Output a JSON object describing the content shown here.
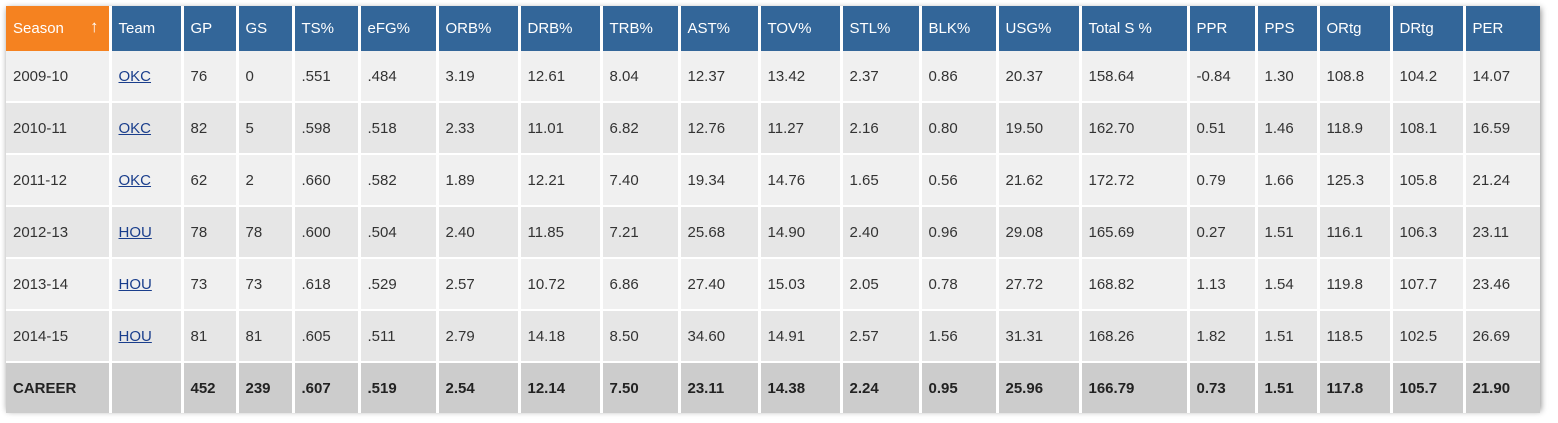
{
  "table": {
    "columns": [
      "Season",
      "Team",
      "GP",
      "GS",
      "TS%",
      "eFG%",
      "ORB%",
      "DRB%",
      "TRB%",
      "AST%",
      "TOV%",
      "STL%",
      "BLK%",
      "USG%",
      "Total S %",
      "PPR",
      "PPS",
      "ORtg",
      "DRtg",
      "PER"
    ],
    "sort_indicator": "↑",
    "rows": [
      [
        "2009-10",
        "OKC",
        "76",
        "0",
        ".551",
        ".484",
        "3.19",
        "12.61",
        "8.04",
        "12.37",
        "13.42",
        "2.37",
        "0.86",
        "20.37",
        "158.64",
        "-0.84",
        "1.30",
        "108.8",
        "104.2",
        "14.07"
      ],
      [
        "2010-11",
        "OKC",
        "82",
        "5",
        ".598",
        ".518",
        "2.33",
        "11.01",
        "6.82",
        "12.76",
        "11.27",
        "2.16",
        "0.80",
        "19.50",
        "162.70",
        "0.51",
        "1.46",
        "118.9",
        "108.1",
        "16.59"
      ],
      [
        "2011-12",
        "OKC",
        "62",
        "2",
        ".660",
        ".582",
        "1.89",
        "12.21",
        "7.40",
        "19.34",
        "14.76",
        "1.65",
        "0.56",
        "21.62",
        "172.72",
        "0.79",
        "1.66",
        "125.3",
        "105.8",
        "21.24"
      ],
      [
        "2012-13",
        "HOU",
        "78",
        "78",
        ".600",
        ".504",
        "2.40",
        "11.85",
        "7.21",
        "25.68",
        "14.90",
        "2.40",
        "0.96",
        "29.08",
        "165.69",
        "0.27",
        "1.51",
        "116.1",
        "106.3",
        "23.11"
      ],
      [
        "2013-14",
        "HOU",
        "73",
        "73",
        ".618",
        ".529",
        "2.57",
        "10.72",
        "6.86",
        "27.40",
        "15.03",
        "2.05",
        "0.78",
        "27.72",
        "168.82",
        "1.13",
        "1.54",
        "119.8",
        "107.7",
        "23.46"
      ],
      [
        "2014-15",
        "HOU",
        "81",
        "81",
        ".605",
        ".511",
        "2.79",
        "14.18",
        "8.50",
        "34.60",
        "14.91",
        "2.57",
        "1.56",
        "31.31",
        "168.26",
        "1.82",
        "1.51",
        "118.5",
        "102.5",
        "26.69"
      ]
    ],
    "career": [
      "CAREER",
      "",
      "452",
      "239",
      ".607",
      ".519",
      "2.54",
      "12.14",
      "7.50",
      "23.11",
      "14.38",
      "2.24",
      "0.95",
      "25.96",
      "166.79",
      "0.73",
      "1.51",
      "117.8",
      "105.7",
      "21.90"
    ]
  },
  "colors": {
    "header_bg": "#336699",
    "sorted_header_bg": "#f58220",
    "link": "#1a3e8c"
  }
}
